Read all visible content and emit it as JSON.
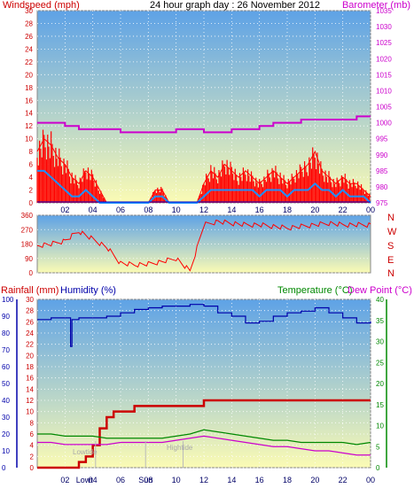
{
  "header": {
    "left_label": "Windspeed (mph)",
    "title": "24 hour graph day : 26 November 2012",
    "right_label": "Barometer (mb)"
  },
  "colors": {
    "wind": "#ff0000",
    "wind_avg": "#1e90ff",
    "wind_base": "#0000cc",
    "baro": "#cc00cc",
    "dir": "#ff0000",
    "rain": "#cc0000",
    "humidity": "#0000aa",
    "temp": "#008800",
    "dew": "#cc00cc",
    "axis_red": "#cc0000",
    "axis_blue": "#0000aa",
    "axis_green": "#008800",
    "axis_magenta": "#cc00cc"
  },
  "chart_data": [
    {
      "type": "line",
      "title": "24 hour graph day : 26 November 2012",
      "ylabel": "Windspeed (mph)",
      "y2label": "Barometer (mb)",
      "xlim": [
        0,
        24
      ],
      "ylim": [
        0,
        30
      ],
      "y2lim": [
        975,
        1035
      ],
      "x_ticks": [
        "02",
        "04",
        "06",
        "08",
        "10",
        "12",
        "14",
        "16",
        "18",
        "20",
        "22",
        "00"
      ],
      "y_ticks": [
        0,
        2,
        4,
        6,
        8,
        10,
        12,
        14,
        16,
        18,
        20,
        22,
        24,
        26,
        28,
        30
      ],
      "y2_ticks": [
        975,
        980,
        985,
        990,
        995,
        1000,
        1005,
        1010,
        1015,
        1020,
        1025,
        1030,
        1035
      ],
      "series": [
        {
          "name": "Windspeed (mph)",
          "x": [
            0,
            0.5,
            1,
            1.5,
            2,
            2.5,
            3,
            3.5,
            4,
            4.5,
            5,
            5.5,
            6,
            6.5,
            7,
            7.5,
            8,
            8.5,
            9,
            9.5,
            10,
            10.5,
            11,
            11.5,
            12,
            12.5,
            13,
            13.5,
            14,
            14.5,
            15,
            15.5,
            16,
            16.5,
            17,
            17.5,
            18,
            18.5,
            19,
            19.5,
            20,
            20.5,
            21,
            21.5,
            22,
            22.5,
            23,
            23.5,
            24
          ],
          "values": [
            8,
            10,
            9,
            7,
            6,
            4,
            3,
            5,
            4,
            2,
            0,
            0,
            0,
            0,
            0,
            0,
            0,
            2,
            2,
            0,
            0,
            0,
            0,
            0,
            3,
            5,
            4,
            6,
            5,
            4,
            5,
            4,
            3,
            4,
            5,
            4,
            3,
            4,
            5,
            6,
            8,
            5,
            4,
            3,
            4,
            3,
            3,
            2,
            1
          ]
        },
        {
          "name": "Windspeed avg",
          "x": [
            0,
            0.5,
            1,
            1.5,
            2,
            2.5,
            3,
            3.5,
            4,
            4.5,
            5,
            5.5,
            6,
            6.5,
            7,
            7.5,
            8,
            8.5,
            9,
            9.5,
            10,
            10.5,
            11,
            11.5,
            12,
            12.5,
            13,
            13.5,
            14,
            14.5,
            15,
            15.5,
            16,
            16.5,
            17,
            17.5,
            18,
            18.5,
            19,
            19.5,
            20,
            20.5,
            21,
            21.5,
            22,
            22.5,
            23,
            23.5,
            24
          ],
          "values": [
            5,
            5,
            4,
            3,
            2,
            1,
            1,
            2,
            1,
            0,
            0,
            0,
            0,
            0,
            0,
            0,
            0,
            1,
            1,
            0,
            0,
            0,
            0,
            0,
            1,
            2,
            2,
            2,
            2,
            2,
            2,
            2,
            1,
            2,
            2,
            2,
            1,
            2,
            2,
            2,
            3,
            2,
            2,
            1,
            2,
            1,
            1,
            1,
            0
          ]
        },
        {
          "name": "Barometer (mb)",
          "axis": "right",
          "x": [
            0,
            1,
            2,
            3,
            4,
            5,
            6,
            7,
            8,
            9,
            10,
            11,
            12,
            13,
            14,
            15,
            16,
            17,
            18,
            19,
            20,
            21,
            22,
            23,
            24
          ],
          "values": [
            1000,
            1000,
            999,
            998,
            998,
            998,
            997,
            997,
            997,
            997,
            998,
            998,
            997,
            997,
            998,
            998,
            999,
            1000,
            1000,
            1001,
            1001,
            1001,
            1001,
            1002,
            1002
          ]
        }
      ]
    },
    {
      "type": "line",
      "ylim": [
        0,
        360
      ],
      "y_ticks": [
        0,
        90,
        180,
        270,
        360
      ],
      "y2_ticks": [
        "N",
        "W",
        "S",
        "E",
        "N"
      ],
      "series": [
        {
          "name": "Wind direction",
          "x": [
            0,
            1,
            2,
            3,
            4,
            5,
            6,
            7,
            8,
            9,
            10,
            11,
            12,
            13,
            14,
            15,
            16,
            17,
            18,
            19,
            20,
            21,
            22,
            23,
            24
          ],
          "values": [
            170,
            180,
            200,
            260,
            210,
            160,
            60,
            50,
            55,
            70,
            90,
            10,
            300,
            320,
            310,
            300,
            300,
            290,
            280,
            290,
            300,
            310,
            300,
            300,
            300
          ]
        }
      ]
    },
    {
      "type": "line",
      "ylabel": "Rainfall (mm)",
      "y2label": "Temperature (°C)",
      "xlim": [
        0,
        24
      ],
      "ylim": [
        0,
        30
      ],
      "y2lim": [
        0,
        40
      ],
      "humidity_lim": [
        0,
        100
      ],
      "x_ticks": [
        "02",
        "04",
        "06",
        "08",
        "10",
        "12",
        "14",
        "16",
        "18",
        "20",
        "22",
        "00"
      ],
      "rain_ticks": [
        0,
        2,
        4,
        6,
        8,
        10,
        12,
        14,
        16,
        18,
        20,
        22,
        24,
        26,
        28,
        30
      ],
      "humidity_ticks": [
        0,
        10,
        20,
        30,
        40,
        50,
        60,
        70,
        80,
        90,
        100
      ],
      "temp_ticks": [
        0,
        5,
        10,
        15,
        20,
        25,
        30,
        35,
        40
      ],
      "series": [
        {
          "name": "Rainfall (mm)",
          "x": [
            0,
            1,
            2,
            3,
            3.5,
            4,
            4.5,
            5,
            5.5,
            6,
            7,
            8,
            9,
            10,
            11,
            12,
            13,
            14,
            15,
            16,
            17,
            18,
            19,
            20,
            21,
            22,
            23,
            24
          ],
          "values": [
            0,
            0,
            0,
            1,
            2,
            4,
            7,
            9,
            10,
            10,
            11,
            11,
            11,
            11,
            11,
            12,
            12,
            12,
            12,
            12,
            12,
            12,
            12,
            12,
            12,
            12,
            12,
            12
          ]
        },
        {
          "name": "Humidity (%)",
          "axis": "humidity",
          "x": [
            0,
            1,
            2,
            2.4,
            2.5,
            3,
            4,
            5,
            6,
            7,
            8,
            9,
            10,
            11,
            12,
            13,
            14,
            15,
            16,
            17,
            18,
            19,
            20,
            21,
            22,
            23,
            24
          ],
          "values": [
            88,
            89,
            89,
            72,
            88,
            89,
            89,
            90,
            92,
            94,
            95,
            96,
            96,
            97,
            96,
            92,
            90,
            86,
            87,
            90,
            92,
            93,
            95,
            92,
            89,
            86,
            87
          ]
        },
        {
          "name": "Temperature (°C)",
          "axis": "temp",
          "x": [
            0,
            1,
            2,
            3,
            4,
            5,
            6,
            7,
            8,
            9,
            10,
            11,
            12,
            13,
            14,
            15,
            16,
            17,
            18,
            19,
            20,
            21,
            22,
            23,
            24
          ],
          "values": [
            8,
            8,
            7.5,
            7.5,
            7.5,
            7,
            7,
            7,
            7,
            7,
            7.5,
            8,
            9,
            8.5,
            8,
            7.5,
            7,
            6.5,
            6.5,
            6,
            6,
            6,
            6,
            5.5,
            6
          ]
        },
        {
          "name": "Dew Point (°C)",
          "axis": "temp",
          "x": [
            0,
            1,
            2,
            3,
            4,
            5,
            6,
            7,
            8,
            9,
            10,
            11,
            12,
            13,
            14,
            15,
            16,
            17,
            18,
            19,
            20,
            21,
            22,
            23,
            24
          ],
          "values": [
            6,
            6,
            5.5,
            5.5,
            5.5,
            5.5,
            6,
            6,
            6,
            6,
            6.5,
            7,
            7.5,
            7,
            6.5,
            6,
            5.5,
            5,
            5,
            4.5,
            4,
            4,
            3.5,
            3,
            3
          ]
        }
      ]
    }
  ],
  "dir_labels": [
    "N",
    "W",
    "S",
    "E",
    "N"
  ],
  "lower_labels": {
    "rain": "Rainfall (mm)",
    "humidity": "Humidity (%)",
    "temp": "Temperature (°C)",
    "dew": "Dew Point (°C)"
  },
  "annotations": {
    "lowtide": "Lowtide",
    "hightide": "Hightide",
    "sun": "Sun",
    "lowtide_x": 4.2,
    "hightide_x": 10.5,
    "sun_x": 7.8
  },
  "lower_x_ticks": [
    "02",
    "Lowt",
    "04",
    "06",
    "Sun",
    "08",
    "10",
    "12",
    "14",
    "16",
    "18",
    "20",
    "22",
    "00"
  ]
}
